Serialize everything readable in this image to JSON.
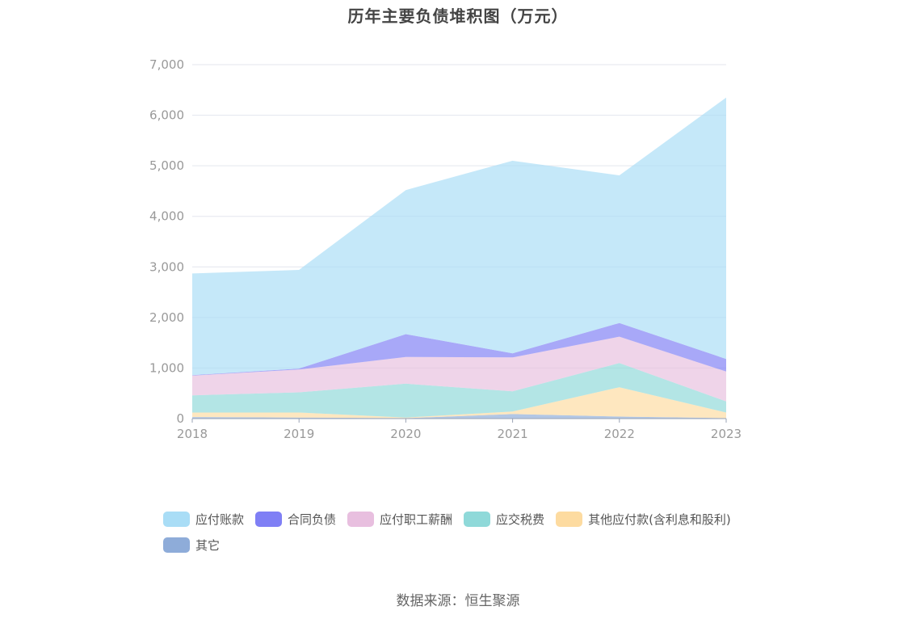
{
  "title": "历年主要负债堆积图（万元）",
  "source": "数据来源：恒生聚源",
  "chart_data": {
    "type": "area",
    "stacked": true,
    "title": "历年主要负债堆积图（万元）",
    "xlabel": "",
    "ylabel": "",
    "categories": [
      "2018",
      "2019",
      "2020",
      "2021",
      "2022",
      "2023"
    ],
    "ylim": [
      0,
      7000
    ],
    "yticks": [
      "0",
      "1,000",
      "2,000",
      "3,000",
      "4,000",
      "5,000",
      "6,000",
      "7,000"
    ],
    "grid": true,
    "legend_position": "bottom",
    "series": [
      {
        "name": "其它",
        "color": "#8eacd9",
        "values": [
          30,
          20,
          10,
          90,
          40,
          10
        ]
      },
      {
        "name": "其他应付款(含利息和股利)",
        "color": "#fddba0",
        "values": [
          90,
          100,
          10,
          50,
          580,
          110
        ]
      },
      {
        "name": "应交税费",
        "color": "#8fd9d9",
        "values": [
          340,
          400,
          670,
          400,
          480,
          220
        ]
      },
      {
        "name": "应付职工薪酬",
        "color": "#e8bfdf",
        "values": [
          390,
          450,
          530,
          670,
          520,
          590
        ]
      },
      {
        "name": "合同负债",
        "color": "#7f7ff5",
        "values": [
          10,
          20,
          450,
          80,
          270,
          250
        ]
      },
      {
        "name": "应付账款",
        "color": "#a9ddf6",
        "values": [
          2010,
          1950,
          2850,
          3810,
          2920,
          5170
        ]
      }
    ]
  },
  "legend": [
    {
      "label": "应付账款",
      "color": "#a9ddf6"
    },
    {
      "label": "合同负债",
      "color": "#7f7ff5"
    },
    {
      "label": "应付职工薪酬",
      "color": "#e8bfdf"
    },
    {
      "label": "应交税费",
      "color": "#8fd9d9"
    },
    {
      "label": "其他应付款(含利息和股利)",
      "color": "#fddba0"
    },
    {
      "label": "其它",
      "color": "#8eacd9"
    }
  ]
}
